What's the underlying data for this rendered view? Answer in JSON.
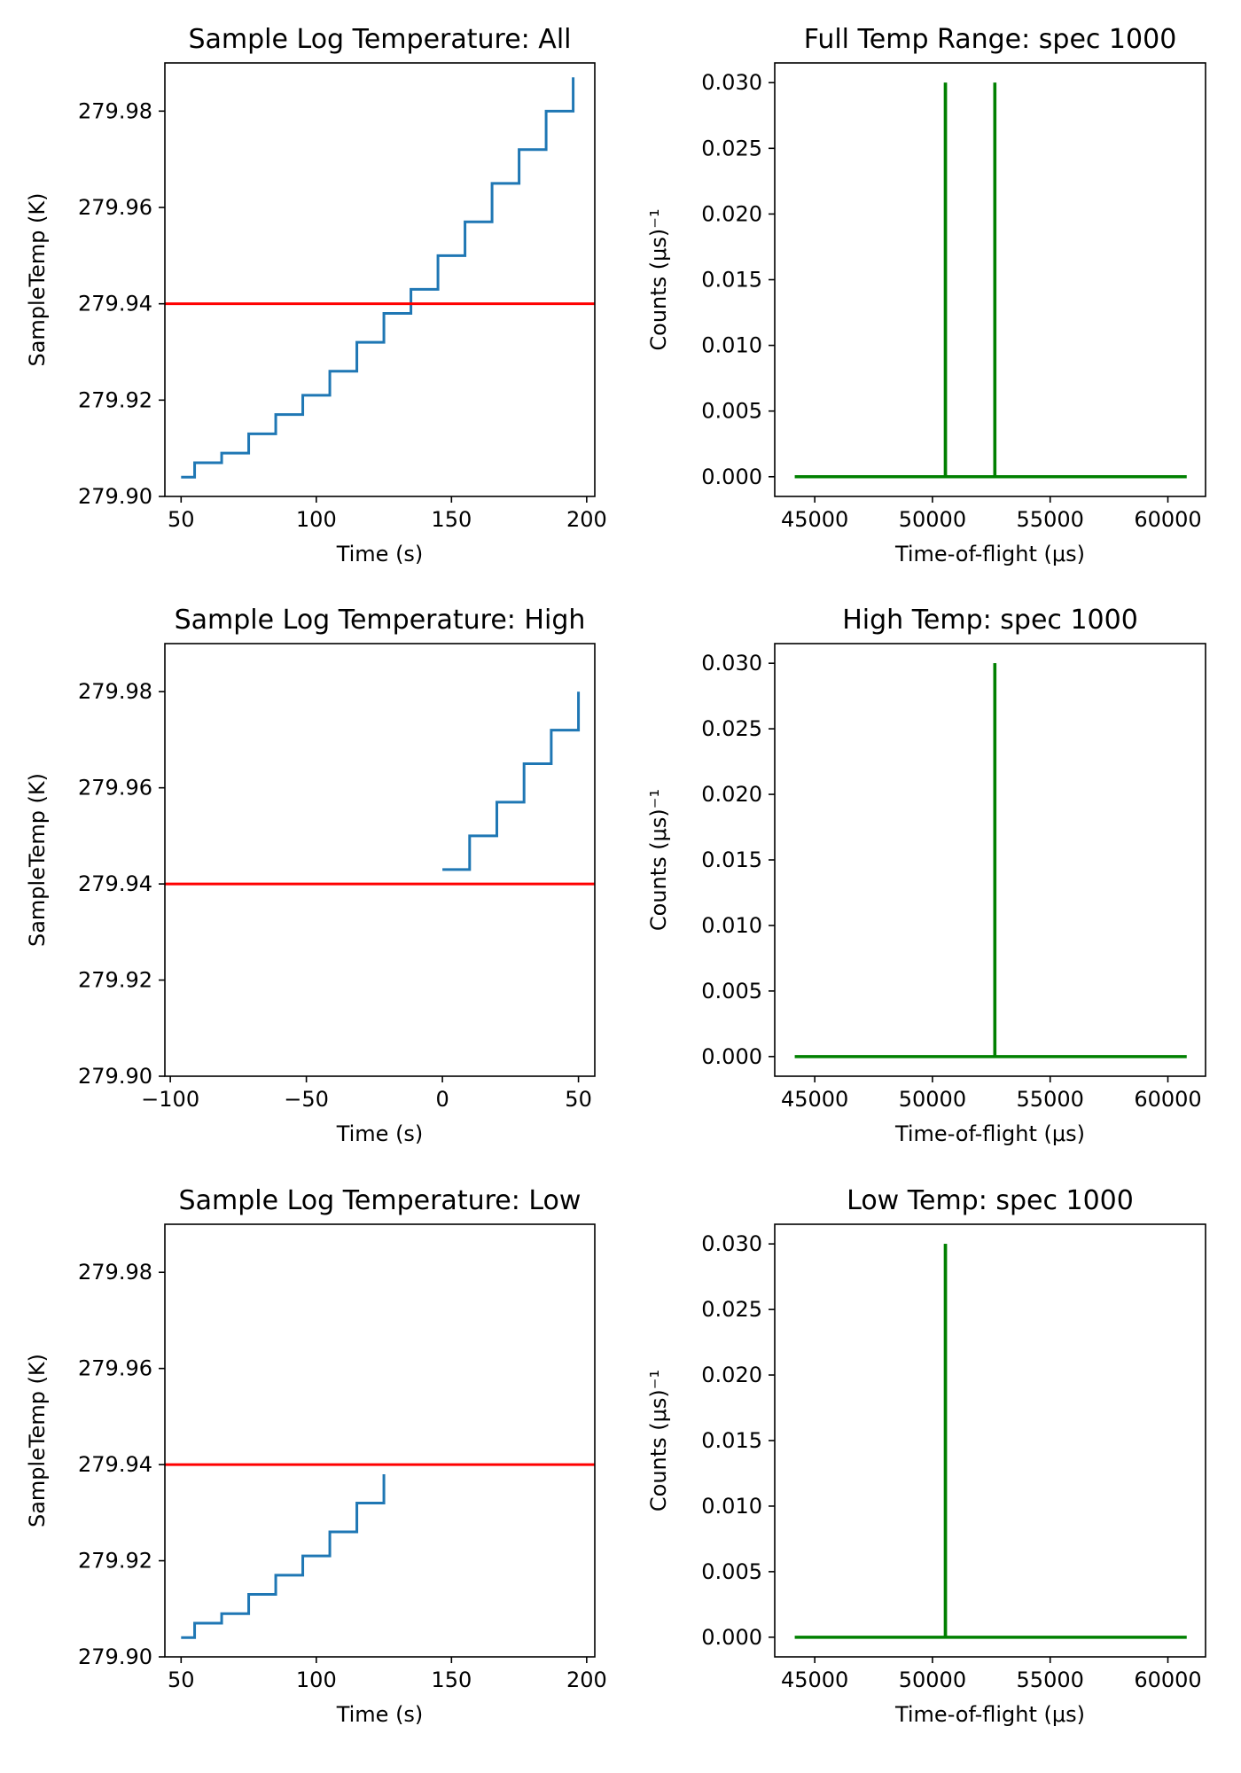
{
  "colors": {
    "step_series": "#1f77b4",
    "threshold_line": "#ff0000",
    "spectrum_series": "#008000"
  },
  "chart_data": [
    {
      "type": "line",
      "title": "Sample Log Temperature: All",
      "xlabel": "Time (s)",
      "ylabel": "SampleTemp (K)",
      "xlim": [
        44,
        203
      ],
      "ylim": [
        279.9,
        279.99
      ],
      "xticks": [
        50,
        100,
        150,
        200
      ],
      "xtick_labels": [
        "50",
        "100",
        "150",
        "200"
      ],
      "yticks": [
        279.9,
        279.92,
        279.94,
        279.96,
        279.98
      ],
      "ytick_labels": [
        "279.90",
        "279.92",
        "279.94",
        "279.96",
        "279.98"
      ],
      "steps": {
        "x": [
          50,
          55,
          65,
          75,
          85,
          95,
          105,
          115,
          125,
          135,
          145,
          155,
          165,
          175,
          185,
          195
        ],
        "y": [
          279.904,
          279.907,
          279.909,
          279.913,
          279.917,
          279.921,
          279.926,
          279.932,
          279.938,
          279.943,
          279.95,
          279.957,
          279.965,
          279.972,
          279.98,
          279.987
        ]
      },
      "hline": 279.94
    },
    {
      "type": "line",
      "title": "Full Temp Range: spec 1000",
      "xlabel": "Time-of-flight (μs)",
      "ylabel": "Counts (μs)⁻¹",
      "xlim": [
        43300,
        61600
      ],
      "ylim": [
        -0.0015,
        0.0315
      ],
      "xticks": [
        45000,
        50000,
        55000,
        60000
      ],
      "xtick_labels": [
        "45000",
        "50000",
        "55000",
        "60000"
      ],
      "yticks": [
        0,
        0.005,
        0.01,
        0.015,
        0.02,
        0.025,
        0.03
      ],
      "ytick_labels": [
        "0.000",
        "0.005",
        "0.010",
        "0.015",
        "0.020",
        "0.025",
        "0.030"
      ],
      "x_range": [
        44150,
        60800
      ],
      "peaks": [
        {
          "x": 50550,
          "y": 0.03
        },
        {
          "x": 52650,
          "y": 0.03
        }
      ]
    },
    {
      "type": "line",
      "title": "Sample Log Temperature: High",
      "xlabel": "Time (s)",
      "ylabel": "SampleTemp (K)",
      "xlim": [
        -102,
        56
      ],
      "ylim": [
        279.9,
        279.99
      ],
      "xticks": [
        -100,
        -50,
        0,
        50
      ],
      "xtick_labels": [
        "−100",
        "−50",
        "0",
        "50"
      ],
      "yticks": [
        279.9,
        279.92,
        279.94,
        279.96,
        279.98
      ],
      "ytick_labels": [
        "279.90",
        "279.92",
        "279.94",
        "279.96",
        "279.98"
      ],
      "steps": {
        "x": [
          0,
          10,
          20,
          30,
          40,
          50
        ],
        "y": [
          279.943,
          279.95,
          279.957,
          279.965,
          279.972,
          279.98
        ]
      },
      "hline": 279.94
    },
    {
      "type": "line",
      "title": "High Temp: spec 1000",
      "xlabel": "Time-of-flight (μs)",
      "ylabel": "Counts (μs)⁻¹",
      "xlim": [
        43300,
        61600
      ],
      "ylim": [
        -0.0015,
        0.0315
      ],
      "xticks": [
        45000,
        50000,
        55000,
        60000
      ],
      "xtick_labels": [
        "45000",
        "50000",
        "55000",
        "60000"
      ],
      "yticks": [
        0,
        0.005,
        0.01,
        0.015,
        0.02,
        0.025,
        0.03
      ],
      "ytick_labels": [
        "0.000",
        "0.005",
        "0.010",
        "0.015",
        "0.020",
        "0.025",
        "0.030"
      ],
      "x_range": [
        44150,
        60800
      ],
      "peaks": [
        {
          "x": 52650,
          "y": 0.03
        }
      ]
    },
    {
      "type": "line",
      "title": "Sample Log Temperature: Low",
      "xlabel": "Time (s)",
      "ylabel": "SampleTemp (K)",
      "xlim": [
        44,
        203
      ],
      "ylim": [
        279.9,
        279.99
      ],
      "xticks": [
        50,
        100,
        150,
        200
      ],
      "xtick_labels": [
        "50",
        "100",
        "150",
        "200"
      ],
      "yticks": [
        279.9,
        279.92,
        279.94,
        279.96,
        279.98
      ],
      "ytick_labels": [
        "279.90",
        "279.92",
        "279.94",
        "279.96",
        "279.98"
      ],
      "steps": {
        "x": [
          50,
          55,
          65,
          75,
          85,
          95,
          105,
          115,
          125
        ],
        "y": [
          279.904,
          279.907,
          279.909,
          279.913,
          279.917,
          279.921,
          279.926,
          279.932,
          279.938
        ]
      },
      "hline": 279.94
    },
    {
      "type": "line",
      "title": "Low Temp: spec 1000",
      "xlabel": "Time-of-flight (μs)",
      "ylabel": "Counts (μs)⁻¹",
      "xlim": [
        43300,
        61600
      ],
      "ylim": [
        -0.0015,
        0.0315
      ],
      "xticks": [
        45000,
        50000,
        55000,
        60000
      ],
      "xtick_labels": [
        "45000",
        "50000",
        "55000",
        "60000"
      ],
      "yticks": [
        0,
        0.005,
        0.01,
        0.015,
        0.02,
        0.025,
        0.03
      ],
      "ytick_labels": [
        "0.000",
        "0.005",
        "0.010",
        "0.015",
        "0.020",
        "0.025",
        "0.030"
      ],
      "x_range": [
        44150,
        60800
      ],
      "peaks": [
        {
          "x": 50550,
          "y": 0.03
        }
      ]
    }
  ]
}
